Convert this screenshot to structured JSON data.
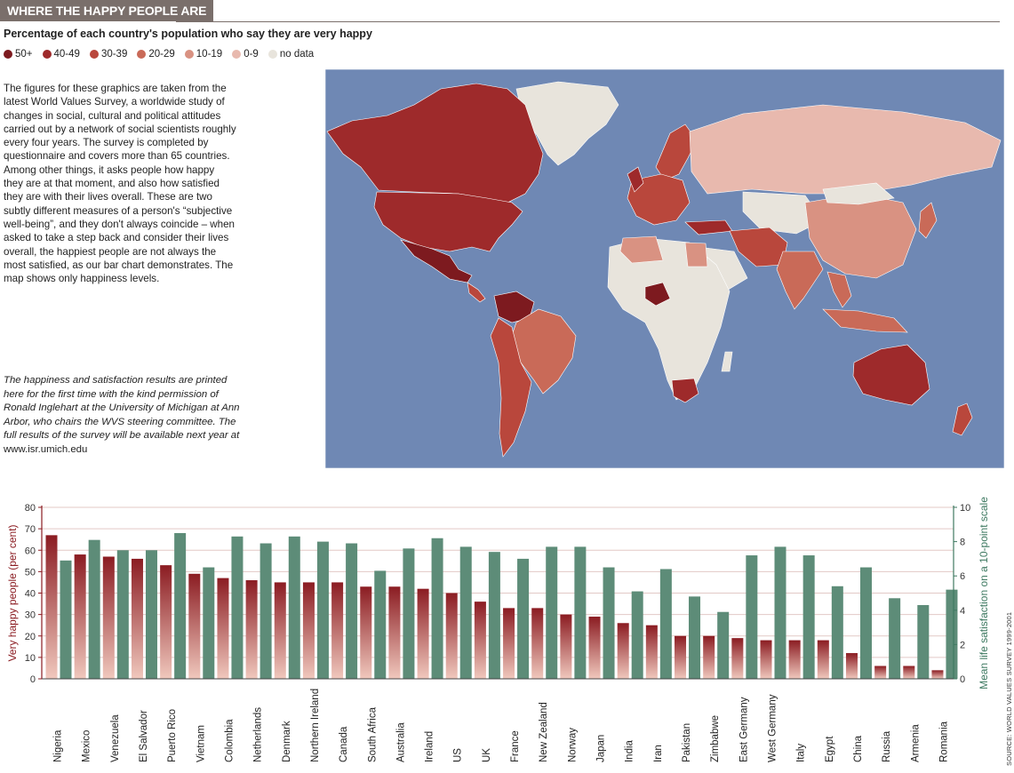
{
  "header": {
    "tag": "WHERE THE HAPPY PEOPLE ARE",
    "subtitle": "Percentage of each country's population who say they are very happy"
  },
  "legend": [
    {
      "label": "50+",
      "color": "#7d1a1f"
    },
    {
      "label": "40-49",
      "color": "#9e2a2b"
    },
    {
      "label": "30-39",
      "color": "#b9473c"
    },
    {
      "label": "20-29",
      "color": "#c96a58"
    },
    {
      "label": "10-19",
      "color": "#d99282"
    },
    {
      "label": "0-9",
      "color": "#e8b9ae"
    },
    {
      "label": "no data",
      "color": "#e8e4dc"
    }
  ],
  "text": {
    "intro": "The figures for these graphics are taken from the latest World Values Survey, a worldwide study of changes in social, cultural and political attitudes carried out by a network of social scientists roughly every four years. The survey is completed by questionnaire and covers more than 65 countries. Among other things, it asks people how happy they are at that moment, and also how satisfied they are with their lives overall. These are two subtly different measures of a person's “subjective well-being”, and they don't always coincide – when asked to take a step back and consider their lives overall, the happiest people are not always the most satisfied, as our bar chart demonstrates. The map shows only happiness levels.",
    "credit": "The happiness and satisfaction results are printed here for the first time with the kind permission of Ronald Inglehart at the University of Michigan at Ann Arbor, who chairs the WVS steering committee. The full results of the survey will be available next year at",
    "credit_url": "www.isr.umich.edu",
    "source": "SOURCE: WORLD VALUES SURVEY 1999-2001"
  },
  "colors": {
    "ocean": "#6f88b4",
    "land_nodata": "#e8e4dc",
    "happy_bar_top": "#8b1c22",
    "happy_bar_bottom": "#f0c8bd",
    "satisfaction_bar": "#5d8c78",
    "left_axis": "#8b1c22",
    "right_axis": "#3f7a62"
  },
  "chart_data": {
    "type": "bar",
    "title": "",
    "categories": [
      "Nigeria",
      "Mexico",
      "Venezuela",
      "El Salvador",
      "Puerto Rico",
      "Vietnam",
      "Colombia",
      "Netherlands",
      "Denmark",
      "Northern Ireland",
      "Canada",
      "South Africa",
      "Australia",
      "Ireland",
      "US",
      "UK",
      "France",
      "New Zealand",
      "Norway",
      "Japan",
      "India",
      "Iran",
      "Pakistan",
      "Zimbabwe",
      "East Germany",
      "West Germany",
      "Italy",
      "Egypt",
      "China",
      "Russia",
      "Armenia",
      "Romania"
    ],
    "series": [
      {
        "name": "Very happy people (per cent)",
        "axis": "left",
        "values": [
          67,
          58,
          57,
          56,
          53,
          49,
          47,
          46,
          45,
          45,
          45,
          43,
          43,
          42,
          40,
          36,
          33,
          33,
          30,
          29,
          26,
          25,
          20,
          20,
          19,
          18,
          18,
          18,
          12,
          6,
          6,
          4
        ]
      },
      {
        "name": "Mean life satisfaction on a 10-point scale",
        "axis": "right",
        "values": [
          6.9,
          8.1,
          7.5,
          7.5,
          8.5,
          6.5,
          8.3,
          7.9,
          8.3,
          8.0,
          7.9,
          6.3,
          7.6,
          8.2,
          7.7,
          7.4,
          7.0,
          7.7,
          7.7,
          6.5,
          5.1,
          6.4,
          4.8,
          3.9,
          7.2,
          7.7,
          7.2,
          5.4,
          6.5,
          4.7,
          4.3,
          5.2
        ]
      }
    ],
    "ylabel": "Very happy people (per cent)",
    "ylabel_right": "Mean life satisfaction on a 10-point scale",
    "ylim": [
      0,
      80
    ],
    "yticks": [
      0,
      10,
      20,
      30,
      40,
      50,
      60,
      70,
      80
    ],
    "ylim_right": [
      0,
      10
    ],
    "yticks_right": [
      0,
      2,
      4,
      6,
      8,
      10
    ],
    "grid": true
  }
}
